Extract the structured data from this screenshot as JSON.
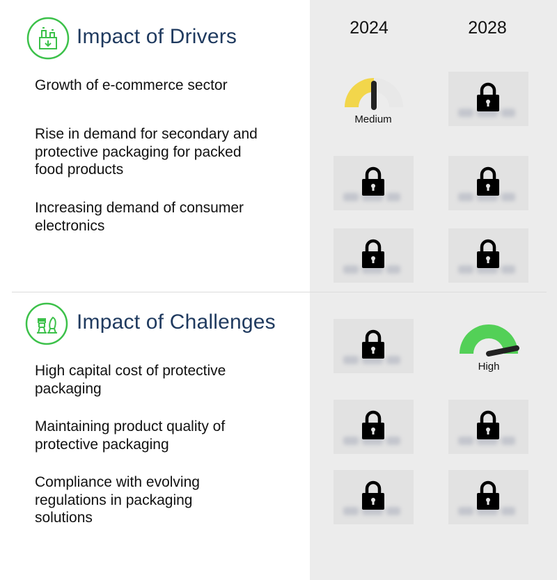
{
  "years": [
    "2024",
    "2028"
  ],
  "drivers": {
    "title": "Impact of Drivers",
    "icon": "factory-download-icon",
    "items": [
      {
        "label": "Growth of e-commerce sector",
        "y2024": {
          "type": "gauge",
          "label": "Medium",
          "level": "medium",
          "color": "#f2d64b"
        },
        "y2028": {
          "type": "locked"
        }
      },
      {
        "label": "Rise in demand for secondary and protective packaging for packed food products",
        "y2024": {
          "type": "locked"
        },
        "y2028": {
          "type": "locked"
        }
      },
      {
        "label": "Increasing demand of consumer electronics",
        "y2024": {
          "type": "locked"
        },
        "y2028": {
          "type": "locked"
        }
      }
    ]
  },
  "challenges": {
    "title": "Impact of Challenges",
    "icon": "chess-pieces-icon",
    "items": [
      {
        "label": "High capital cost of protective packaging",
        "y2024": {
          "type": "locked"
        },
        "y2028": {
          "type": "gauge",
          "label": "High",
          "level": "high",
          "color": "#53d057"
        }
      },
      {
        "label": "Maintaining product quality of protective packaging",
        "y2024": {
          "type": "locked"
        },
        "y2028": {
          "type": "locked"
        }
      },
      {
        "label": "Compliance with evolving regulations in packaging solutions",
        "y2024": {
          "type": "locked"
        },
        "y2028": {
          "type": "locked"
        }
      }
    ]
  },
  "colors": {
    "accent_green": "#3cc14a",
    "title_blue": "#1f3a5f",
    "panel_gray": "#ececec"
  }
}
